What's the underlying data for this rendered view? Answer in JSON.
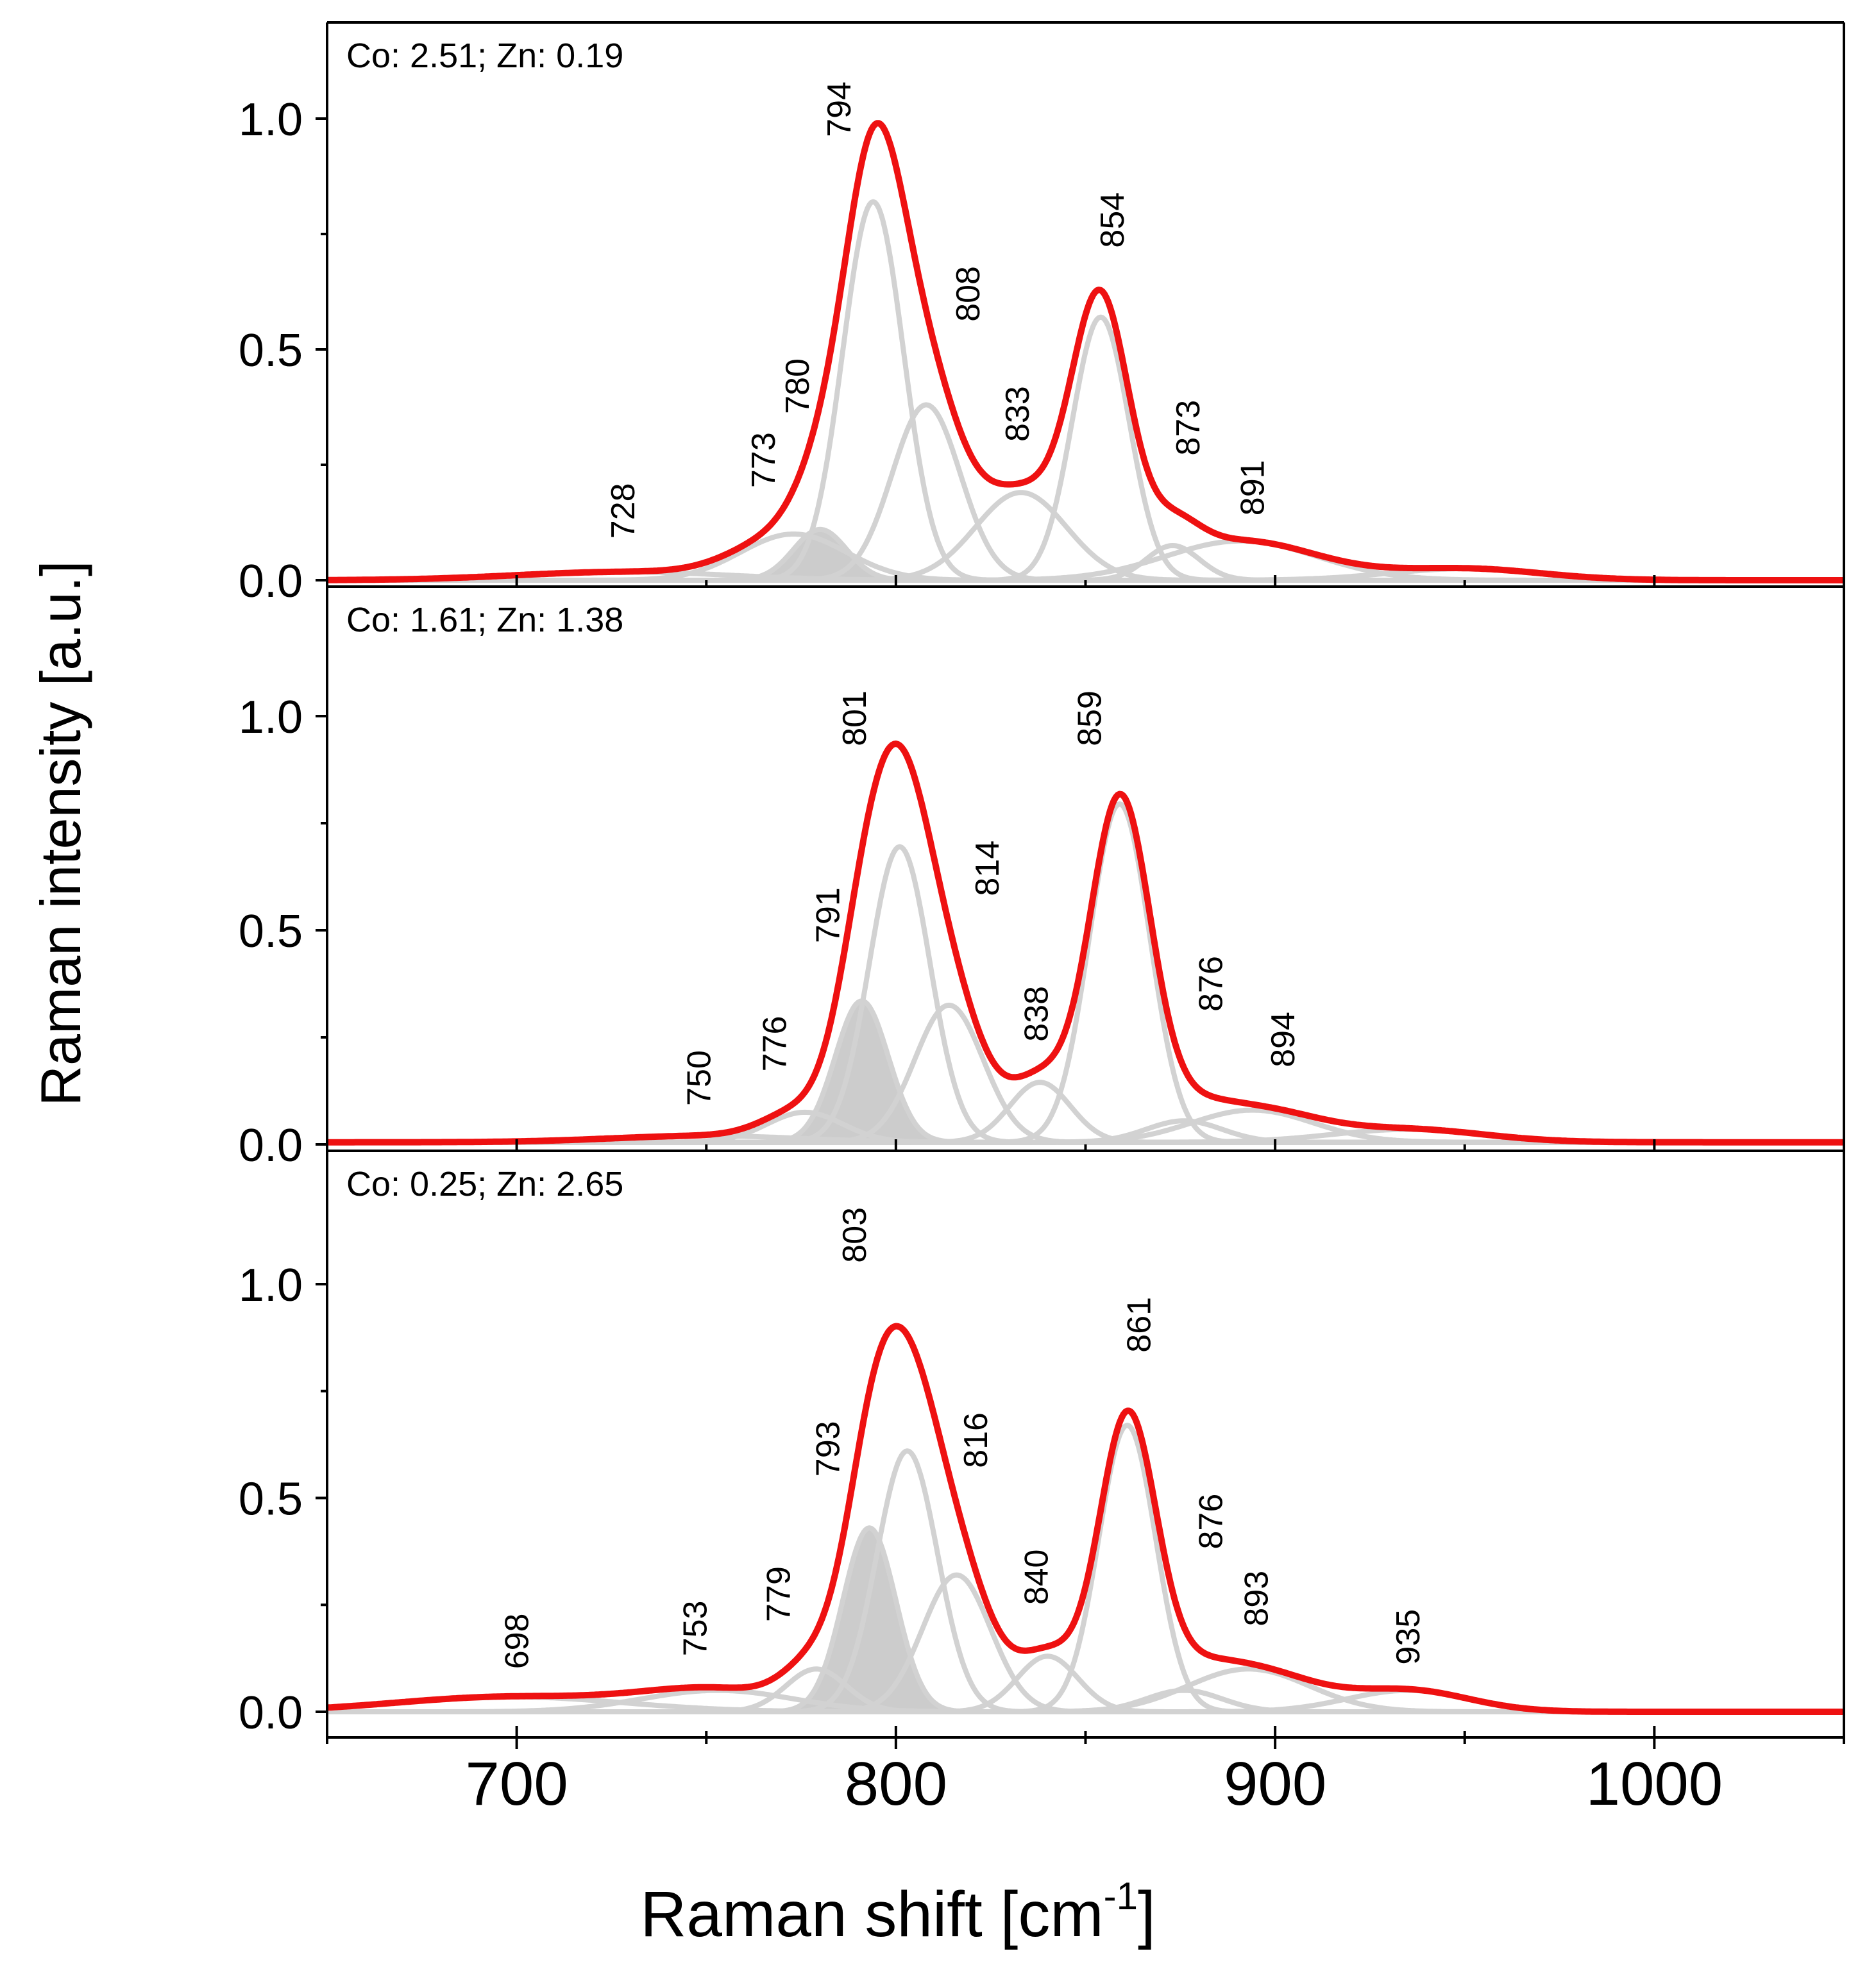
{
  "chart_data": {
    "type": "line",
    "xlabel": "Raman shift [cm",
    "xlabel_sup": "-1",
    "xlabel_end": "]",
    "ylabel": "Raman intensity [a.u.]",
    "xlim": [
      650,
      1050
    ],
    "x_ticks": [
      700,
      800,
      900,
      1000
    ],
    "x_tick_labels": [
      "700",
      "800",
      "900",
      "1000"
    ],
    "y_tick_labels": [
      "0.0",
      "0.5",
      "1.0"
    ],
    "colors": {
      "envelope": "#ee1111",
      "component": "#d2d2d2",
      "shaded": "#cccccc",
      "axis": "#000000"
    },
    "panels": [
      {
        "label": "Co: 2.51; Zn: 0.19",
        "ylim": [
          0,
          1.2
        ],
        "y_ticks": [
          0.0,
          0.5,
          1.0
        ],
        "baseline": 0.0,
        "shaded_peak": 780,
        "components": [
          {
            "center": 728,
            "height": 0.018,
            "width": 28
          },
          {
            "center": 773,
            "height": 0.1,
            "width": 14
          },
          {
            "center": 780,
            "height": 0.11,
            "width": 7
          },
          {
            "center": 794,
            "height": 0.82,
            "width": 8
          },
          {
            "center": 808,
            "height": 0.38,
            "width": 9
          },
          {
            "center": 833,
            "height": 0.19,
            "width": 12
          },
          {
            "center": 854,
            "height": 0.57,
            "width": 7.5
          },
          {
            "center": 873,
            "height": 0.075,
            "width": 7
          },
          {
            "center": 891,
            "height": 0.085,
            "width": 20
          },
          {
            "center": 950,
            "height": 0.025,
            "width": 20
          }
        ],
        "peak_labels": [
          {
            "text": "728",
            "x": 728,
            "y": 0.09
          },
          {
            "text": "773",
            "x": 765,
            "y": 0.2
          },
          {
            "text": "780",
            "x": 774,
            "y": 0.36
          },
          {
            "text": "794",
            "x": 785,
            "y": 0.96
          },
          {
            "text": "808",
            "x": 819,
            "y": 0.56
          },
          {
            "text": "833",
            "x": 832,
            "y": 0.3
          },
          {
            "text": "854",
            "x": 857,
            "y": 0.72
          },
          {
            "text": "873",
            "x": 877,
            "y": 0.27
          },
          {
            "text": "891",
            "x": 894,
            "y": 0.14
          }
        ]
      },
      {
        "label": "Co: 1.61; Zn: 1.38",
        "ylim": [
          0,
          1.2
        ],
        "y_ticks": [
          0.0,
          0.5,
          1.0
        ],
        "baseline": 0.005,
        "shaded_peak": 791,
        "components": [
          {
            "center": 750,
            "height": 0.015,
            "width": 25
          },
          {
            "center": 776,
            "height": 0.07,
            "width": 10
          },
          {
            "center": 791,
            "height": 0.33,
            "width": 7
          },
          {
            "center": 801,
            "height": 0.69,
            "width": 8
          },
          {
            "center": 814,
            "height": 0.32,
            "width": 9
          },
          {
            "center": 838,
            "height": 0.14,
            "width": 8
          },
          {
            "center": 859,
            "height": 0.79,
            "width": 8
          },
          {
            "center": 876,
            "height": 0.05,
            "width": 10
          },
          {
            "center": 894,
            "height": 0.075,
            "width": 16
          },
          {
            "center": 935,
            "height": 0.03,
            "width": 20
          }
        ],
        "peak_labels": [
          {
            "text": "750",
            "x": 748,
            "y": 0.09
          },
          {
            "text": "776",
            "x": 768,
            "y": 0.17
          },
          {
            "text": "791",
            "x": 782,
            "y": 0.47
          },
          {
            "text": "801",
            "x": 789,
            "y": 0.93
          },
          {
            "text": "814",
            "x": 824,
            "y": 0.58
          },
          {
            "text": "838",
            "x": 837,
            "y": 0.24
          },
          {
            "text": "859",
            "x": 851,
            "y": 0.93
          },
          {
            "text": "876",
            "x": 883,
            "y": 0.31
          },
          {
            "text": "894",
            "x": 902,
            "y": 0.18
          }
        ]
      },
      {
        "label": "Co: 0.25; Zn: 2.65",
        "ylim": [
          0,
          1.2
        ],
        "y_ticks": [
          0.0,
          0.5,
          1.0
        ],
        "baseline": 0.0,
        "shaded_peak": 793,
        "components": [
          {
            "center": 698,
            "height": 0.035,
            "width": 30
          },
          {
            "center": 753,
            "height": 0.05,
            "width": 20
          },
          {
            "center": 779,
            "height": 0.1,
            "width": 8
          },
          {
            "center": 793,
            "height": 0.43,
            "width": 7
          },
          {
            "center": 803,
            "height": 0.61,
            "width": 8
          },
          {
            "center": 816,
            "height": 0.32,
            "width": 9
          },
          {
            "center": 840,
            "height": 0.13,
            "width": 8
          },
          {
            "center": 861,
            "height": 0.67,
            "width": 7.5
          },
          {
            "center": 876,
            "height": 0.05,
            "width": 10
          },
          {
            "center": 893,
            "height": 0.1,
            "width": 16
          },
          {
            "center": 935,
            "height": 0.05,
            "width": 16
          }
        ],
        "peak_labels": [
          {
            "text": "698",
            "x": 700,
            "y": 0.1
          },
          {
            "text": "753",
            "x": 747,
            "y": 0.13
          },
          {
            "text": "779",
            "x": 769,
            "y": 0.21
          },
          {
            "text": "793",
            "x": 782,
            "y": 0.55
          },
          {
            "text": "803",
            "x": 789,
            "y": 1.05
          },
          {
            "text": "816",
            "x": 821,
            "y": 0.57
          },
          {
            "text": "840",
            "x": 837,
            "y": 0.25
          },
          {
            "text": "861",
            "x": 864,
            "y": 0.84
          },
          {
            "text": "876",
            "x": 883,
            "y": 0.38
          },
          {
            "text": "893",
            "x": 895,
            "y": 0.2
          },
          {
            "text": "935",
            "x": 935,
            "y": 0.11
          }
        ]
      }
    ]
  }
}
